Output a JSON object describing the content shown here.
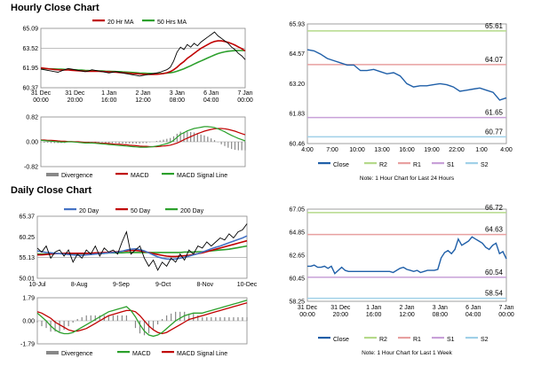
{
  "sections": {
    "hourly_title": "Hourly Close Chart",
    "daily_title": "Daily Close Chart"
  },
  "colors": {
    "close": "#000000",
    "ma20": "#c00000",
    "ma50": "#2ca02c",
    "day20": "#4472c4",
    "day50": "#c00000",
    "day200": "#2ca02c",
    "divergence": "#888888",
    "macd": "#2ca02c",
    "signal": "#c00000",
    "close_line": "#1f5fa8",
    "r2": "#b5d98a",
    "r1": "#e8a0a0",
    "s1": "#c8a0d8",
    "s2": "#a0d0e8"
  },
  "chart_data": [
    {
      "id": "hourly-price",
      "type": "line",
      "legend": [
        "20 Hr MA",
        "50 Hrs MA"
      ],
      "yticks": [
        "65.09",
        "63.52",
        "61.95",
        "60.37"
      ],
      "ylim": [
        60.37,
        65.09
      ],
      "xticks": [
        "31 Dec\n00:00",
        "31 Dec\n20:00",
        "1 Jan\n16:00",
        "2 Jan\n12:00",
        "3 Jan\n08:00",
        "6 Jan\n04:00",
        "7 Jan\n00:00"
      ],
      "hline": 63.52,
      "close": [
        61.85,
        61.8,
        61.75,
        61.7,
        61.65,
        61.6,
        61.7,
        61.8,
        61.9,
        61.85,
        61.8,
        61.75,
        61.7,
        61.65,
        61.7,
        61.8,
        61.75,
        61.7,
        61.65,
        61.6,
        61.55,
        61.6,
        61.65,
        61.6,
        61.55,
        61.5,
        61.45,
        61.4,
        61.35,
        61.3,
        61.35,
        61.4,
        61.45,
        61.5,
        61.55,
        61.6,
        61.7,
        61.8,
        62.0,
        62.5,
        63.2,
        63.6,
        63.4,
        63.8,
        63.6,
        63.9,
        63.7,
        64.0,
        64.2,
        64.4,
        64.6,
        64.8,
        64.5,
        64.3,
        64.1,
        63.9,
        63.6,
        63.4,
        63.1,
        62.9,
        62.6
      ],
      "ma20": [
        61.95,
        61.92,
        61.88,
        61.85,
        61.82,
        61.8,
        61.78,
        61.78,
        61.78,
        61.76,
        61.74,
        61.72,
        61.7,
        61.68,
        61.68,
        61.68,
        61.68,
        61.67,
        61.66,
        61.65,
        61.63,
        61.62,
        61.6,
        61.58,
        61.56,
        61.54,
        61.52,
        61.5,
        61.48,
        61.46,
        61.45,
        61.44,
        61.43,
        61.43,
        61.44,
        61.46,
        61.5,
        61.56,
        61.65,
        61.8,
        62.0,
        62.25,
        62.45,
        62.7,
        62.9,
        63.1,
        63.3,
        63.5,
        63.65,
        63.8,
        63.95,
        64.05,
        64.1,
        64.1,
        64.05,
        63.98,
        63.88,
        63.76,
        63.62,
        63.48,
        63.3
      ],
      "ma50": [
        61.9,
        61.89,
        61.88,
        61.87,
        61.86,
        61.85,
        61.84,
        61.83,
        61.82,
        61.81,
        61.8,
        61.78,
        61.77,
        61.75,
        61.74,
        61.73,
        61.72,
        61.71,
        61.7,
        61.69,
        61.68,
        61.67,
        61.66,
        61.65,
        61.63,
        61.62,
        61.6,
        61.58,
        61.56,
        61.54,
        61.53,
        61.52,
        61.51,
        61.5,
        61.5,
        61.5,
        61.51,
        61.53,
        61.56,
        61.6,
        61.68,
        61.78,
        61.88,
        62.0,
        62.12,
        62.25,
        62.38,
        62.5,
        62.62,
        62.74,
        62.86,
        62.98,
        63.08,
        63.16,
        63.22,
        63.27,
        63.3,
        63.32,
        63.33,
        63.33,
        63.32
      ]
    },
    {
      "id": "hourly-macd",
      "type": "line",
      "legend": [
        "Divergence",
        "MACD",
        "MACD Signal Line"
      ],
      "yticks": [
        "0.82",
        "0.00",
        "-0.82"
      ],
      "ylim": [
        -0.82,
        0.82
      ],
      "macd": [
        0.05,
        0.04,
        0.03,
        0.02,
        0.01,
        0.0,
        -0.01,
        -0.01,
        0.0,
        0.0,
        -0.01,
        -0.02,
        -0.03,
        -0.04,
        -0.04,
        -0.04,
        -0.05,
        -0.06,
        -0.07,
        -0.08,
        -0.09,
        -0.1,
        -0.11,
        -0.12,
        -0.13,
        -0.14,
        -0.15,
        -0.16,
        -0.17,
        -0.18,
        -0.18,
        -0.18,
        -0.17,
        -0.16,
        -0.14,
        -0.12,
        -0.09,
        -0.06,
        -0.02,
        0.05,
        0.15,
        0.25,
        0.3,
        0.36,
        0.4,
        0.44,
        0.46,
        0.48,
        0.5,
        0.5,
        0.49,
        0.47,
        0.43,
        0.38,
        0.33,
        0.27,
        0.21,
        0.16,
        0.11,
        0.07,
        0.03
      ],
      "signal": [
        0.06,
        0.06,
        0.05,
        0.05,
        0.04,
        0.03,
        0.02,
        0.02,
        0.01,
        0.01,
        0.0,
        0.0,
        -0.01,
        -0.02,
        -0.02,
        -0.03,
        -0.03,
        -0.04,
        -0.05,
        -0.05,
        -0.06,
        -0.07,
        -0.08,
        -0.08,
        -0.09,
        -0.1,
        -0.11,
        -0.12,
        -0.13,
        -0.14,
        -0.15,
        -0.15,
        -0.16,
        -0.16,
        -0.16,
        -0.15,
        -0.14,
        -0.13,
        -0.11,
        -0.08,
        -0.04,
        0.01,
        0.07,
        0.12,
        0.17,
        0.22,
        0.27,
        0.31,
        0.35,
        0.38,
        0.41,
        0.43,
        0.44,
        0.44,
        0.43,
        0.41,
        0.38,
        0.35,
        0.31,
        0.27,
        0.23
      ]
    },
    {
      "id": "hourly-pivot",
      "type": "line",
      "yticks": [
        "65.93",
        "64.57",
        "63.20",
        "61.83",
        "60.46"
      ],
      "ylim": [
        60.46,
        65.93
      ],
      "xticks": [
        "4:00",
        "7:00",
        "10:00",
        "13:00",
        "16:00",
        "19:00",
        "22:00",
        "1:00",
        "4:00"
      ],
      "levels": [
        {
          "label": "65.61",
          "value": 65.61,
          "key": "r2"
        },
        {
          "label": "64.07",
          "value": 64.07,
          "key": "r1"
        },
        {
          "label": "61.65",
          "value": 61.65,
          "key": "s1"
        },
        {
          "label": "60.77",
          "value": 60.77,
          "key": "s2"
        }
      ],
      "close": [
        64.75,
        64.7,
        64.55,
        64.35,
        64.25,
        64.15,
        64.05,
        64.05,
        63.8,
        63.8,
        63.85,
        63.75,
        63.65,
        63.7,
        63.55,
        63.2,
        63.05,
        63.1,
        63.1,
        63.15,
        63.2,
        63.15,
        63.05,
        62.85,
        62.9,
        62.95,
        63.0,
        62.9,
        62.8,
        62.45,
        62.55
      ],
      "legend": [
        "Close",
        "R2",
        "R1",
        "S1",
        "S2"
      ],
      "note": "Note: 1 Hour Chart for Last 24 Hours"
    },
    {
      "id": "daily-price",
      "type": "line",
      "legend": [
        "20 Day",
        "50 Day",
        "200 Day"
      ],
      "yticks": [
        "65.37",
        "60.25",
        "55.13",
        "50.01"
      ],
      "ylim": [
        50.01,
        65.37
      ],
      "xticks": [
        "10-Jul",
        "8-Aug",
        "9-Sep",
        "9-Oct",
        "8-Nov",
        "10-Dec"
      ],
      "hline": 55.13,
      "close": [
        57.5,
        56.5,
        58,
        55,
        56.5,
        57,
        55.5,
        57,
        54,
        56,
        55,
        57,
        56,
        58,
        55.5,
        57.5,
        56.5,
        57,
        56,
        59,
        61.5,
        56,
        57,
        58,
        55,
        53,
        54.5,
        52,
        54,
        53,
        55,
        54,
        56,
        54.5,
        57,
        56,
        58,
        57.5,
        59,
        58,
        59,
        60,
        59.5,
        61,
        60,
        61.5,
        62,
        63.5
      ],
      "d20": [
        56.8,
        56.6,
        56.4,
        56.3,
        56.2,
        56.1,
        56.0,
        55.9,
        55.8,
        55.7,
        55.7,
        55.8,
        55.9,
        56.0,
        56.1,
        56.2,
        56.3,
        56.4,
        56.5,
        56.7,
        57.0,
        57.2,
        57.3,
        57.1,
        56.8,
        56.3,
        55.8,
        55.3,
        55.0,
        54.8,
        54.7,
        54.8,
        55.0,
        55.2,
        55.5,
        55.8,
        56.1,
        56.5,
        56.9,
        57.3,
        57.7,
        58.0,
        58.4,
        58.8,
        59.2,
        59.6,
        60.0,
        60.5
      ],
      "d50": [
        55.8,
        55.8,
        55.9,
        56.0,
        56.1,
        56.1,
        56.2,
        56.2,
        56.2,
        56.2,
        56.2,
        56.2,
        56.2,
        56.3,
        56.3,
        56.4,
        56.4,
        56.5,
        56.6,
        56.7,
        56.8,
        56.9,
        56.9,
        56.8,
        56.6,
        56.4,
        56.1,
        55.9,
        55.7,
        55.5,
        55.4,
        55.4,
        55.5,
        55.6,
        55.7,
        55.9,
        56.1,
        56.3,
        56.6,
        56.9,
        57.2,
        57.5,
        57.8,
        58.1,
        58.4,
        58.7,
        59.0,
        59.3
      ],
      "d200": [
        56.0,
        56.0,
        56.0,
        56.0,
        56.1,
        56.1,
        56.1,
        56.1,
        56.1,
        56.1,
        56.1,
        56.2,
        56.2,
        56.2,
        56.2,
        56.2,
        56.3,
        56.3,
        56.3,
        56.3,
        56.4,
        56.4,
        56.4,
        56.4,
        56.4,
        56.4,
        56.4,
        56.4,
        56.4,
        56.4,
        56.4,
        56.4,
        56.4,
        56.5,
        56.5,
        56.5,
        56.6,
        56.6,
        56.7,
        56.8,
        56.9,
        57.0,
        57.1,
        57.2,
        57.4,
        57.6,
        57.8,
        58.0
      ]
    },
    {
      "id": "daily-macd",
      "type": "line",
      "legend": [
        "Divergence",
        "MACD",
        "MACD Signal Line"
      ],
      "yticks": [
        "1.79",
        "0.00",
        "-1.79"
      ],
      "ylim": [
        -1.79,
        1.79
      ],
      "macd": [
        0.6,
        0.3,
        0.0,
        -0.4,
        -0.7,
        -0.9,
        -1.0,
        -1.0,
        -0.9,
        -0.7,
        -0.5,
        -0.3,
        -0.1,
        0.1,
        0.3,
        0.5,
        0.7,
        0.8,
        0.9,
        1.0,
        1.1,
        0.8,
        0.3,
        -0.3,
        -0.8,
        -1.1,
        -1.2,
        -1.1,
        -0.9,
        -0.6,
        -0.3,
        0.0,
        0.2,
        0.4,
        0.5,
        0.6,
        0.6,
        0.6,
        0.7,
        0.8,
        0.9,
        1.0,
        1.1,
        1.2,
        1.3,
        1.4,
        1.5,
        1.6
      ],
      "signal": [
        0.7,
        0.6,
        0.4,
        0.2,
        -0.1,
        -0.3,
        -0.5,
        -0.7,
        -0.8,
        -0.8,
        -0.7,
        -0.6,
        -0.4,
        -0.2,
        0.0,
        0.2,
        0.4,
        0.5,
        0.6,
        0.7,
        0.8,
        0.8,
        0.7,
        0.4,
        0.0,
        -0.4,
        -0.7,
        -0.9,
        -1.0,
        -0.9,
        -0.7,
        -0.5,
        -0.3,
        -0.1,
        0.1,
        0.2,
        0.3,
        0.4,
        0.5,
        0.6,
        0.7,
        0.8,
        0.9,
        1.0,
        1.1,
        1.2,
        1.3,
        1.4
      ]
    },
    {
      "id": "daily-pivot",
      "type": "line",
      "yticks": [
        "67.05",
        "64.85",
        "62.65",
        "60.45",
        "58.25"
      ],
      "ylim": [
        58.25,
        67.05
      ],
      "xticks": [
        "31 Dec\n00:00",
        "31 Dec\n20:00",
        "1 Jan\n16:00",
        "2 Jan\n12:00",
        "3 Jan\n08:00",
        "6 Jan\n04:00",
        "7 Jan\n00:00"
      ],
      "levels": [
        {
          "label": "66.72",
          "value": 66.72,
          "key": "r2"
        },
        {
          "label": "64.63",
          "value": 64.63,
          "key": "r1"
        },
        {
          "label": "60.54",
          "value": 60.54,
          "key": "s1"
        },
        {
          "label": "58.54",
          "value": 58.54,
          "key": "s2"
        }
      ],
      "close": [
        61.6,
        61.6,
        61.7,
        61.5,
        61.5,
        61.6,
        61.4,
        61.6,
        60.9,
        61.2,
        61.5,
        61.2,
        61.1,
        61.1,
        61.1,
        61.1,
        61.1,
        61.1,
        61.1,
        61.1,
        61.1,
        61.1,
        61.1,
        61.1,
        61.1,
        61.0,
        61.2,
        61.4,
        61.5,
        61.3,
        61.2,
        61.1,
        61.2,
        61.0,
        61.1,
        61.2,
        61.2,
        61.2,
        61.3,
        62.4,
        62.9,
        63.1,
        62.8,
        63.2,
        64.2,
        63.6,
        63.8,
        64.0,
        64.4,
        64.2,
        64.0,
        63.8,
        63.4,
        63.2,
        63.6,
        63.8,
        62.8,
        63.0,
        62.3
      ],
      "legend": [
        "Close",
        "R2",
        "R1",
        "S1",
        "S2"
      ],
      "note": "Note: 1 Hour Chart for Last 1 Week"
    }
  ]
}
